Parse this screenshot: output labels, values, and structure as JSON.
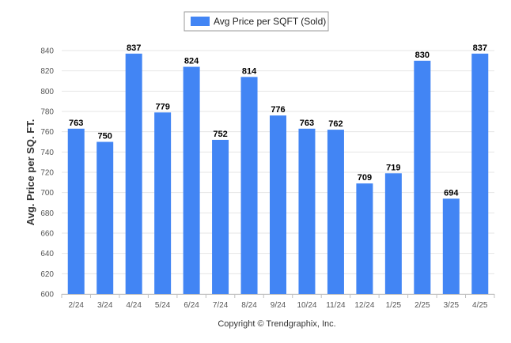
{
  "chart_data": {
    "type": "bar",
    "categories": [
      "2/24",
      "3/24",
      "4/24",
      "5/24",
      "6/24",
      "7/24",
      "8/24",
      "9/24",
      "10/24",
      "11/24",
      "12/24",
      "1/25",
      "2/25",
      "3/25",
      "4/25"
    ],
    "series": [
      {
        "name": "Avg Price per SQFT (Sold)",
        "values": [
          763,
          750,
          837,
          779,
          824,
          752,
          814,
          776,
          763,
          762,
          709,
          719,
          830,
          694,
          837
        ]
      }
    ],
    "ylabel": "Avg. Price per SQ. FT.",
    "xlabel": "",
    "ylim": [
      600,
      840
    ],
    "yticks": [
      600,
      620,
      640,
      660,
      680,
      700,
      720,
      740,
      760,
      780,
      800,
      820,
      840
    ],
    "grid": true,
    "legend": "top-center",
    "bar_color": "#4285f4",
    "footer": "Copyright © Trendgraphix, Inc."
  }
}
